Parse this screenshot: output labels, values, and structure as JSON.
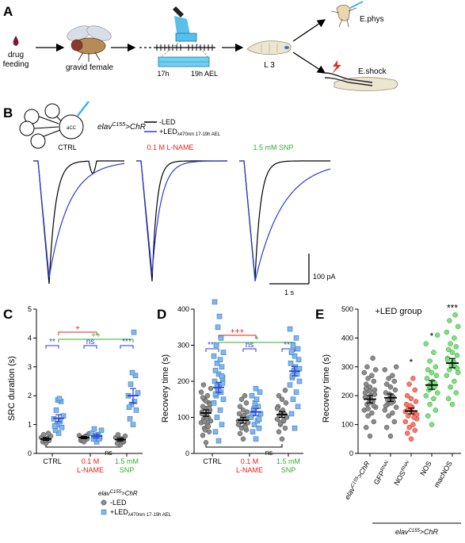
{
  "colors": {
    "blue": "#2a3bd6",
    "red": "#e02020",
    "green": "#2fae2f",
    "grey_point": "#8c8c8c",
    "lightblue_point": "#7fb8ee",
    "lightred_point": "#f47a6c",
    "lightgreen_point": "#7fe07f",
    "black": "#000000"
  },
  "panelA": {
    "letter": "A",
    "drug": "drug",
    "feeding": "feeding",
    "gravid_female": "gravid female",
    "t17": "17h",
    "t19": "19h AEL",
    "l3": "L 3",
    "ephys": "E.phys",
    "eshock": "E.shock"
  },
  "panelB": {
    "letter": "B",
    "neuron": "aCC",
    "genotype_base": "elav",
    "genotype_sup": "C155",
    "genotype_suffix": ">ChR",
    "legend_minus": "-LED",
    "legend_plus": "+LED",
    "legend_plus_sub": "λ470nm 17-19h AEL",
    "cond_ctrl": "CTRL",
    "cond_lname": "0.1 M L-NAME",
    "cond_snp": "1.5 mM SNP",
    "scale_y": "100 pA",
    "scale_x": "1 s"
  },
  "panelC": {
    "letter": "C",
    "ylabel": "SRC duration (s)",
    "yticks": [
      "0",
      "1",
      "2",
      "3",
      "4",
      "5"
    ],
    "x_ctrl": "CTRL",
    "x_lname_1": "0.1 M",
    "x_lname_2": "L-NAME",
    "x_snp_1": "1.5 mM",
    "x_snp_2": "SNP",
    "sig_blue_1": "**",
    "sig_blue_2": "ns",
    "sig_blue_3": "***",
    "sig_red": "+",
    "sig_green": "++",
    "sig_black": "ns",
    "legend_geno_base": "elav",
    "legend_geno_sup": "C155",
    "legend_geno_suffix": ">ChR",
    "legend_minus": "-LED",
    "legend_plus": "+LED",
    "legend_plus_sub": "λ470nm 17-19h AEL"
  },
  "panelD": {
    "letter": "D",
    "ylabel": "Recovery time (s)",
    "yticks": [
      "0",
      "100",
      "200",
      "300",
      "400"
    ],
    "x_ctrl": "CTRL",
    "x_lname_1": "0.1 M",
    "x_lname_2": "L-NAME",
    "x_snp_1": "1.5 mM",
    "x_snp_2": "SNP",
    "sig_blue_1": "***",
    "sig_blue_2": "ns",
    "sig_blue_3": "***",
    "sig_red": "+++",
    "sig_green": "+",
    "sig_black": "ns"
  },
  "panelE": {
    "letter": "E",
    "title": "+LED group",
    "ylabel": "Recovery time (s)",
    "yticks": [
      "0",
      "100",
      "200",
      "300",
      "400",
      "500"
    ],
    "x1_base": "elav",
    "x1_sup": "C155",
    "x1_suffix": ">ChR",
    "x2_base": "GFP",
    "x2_sup": "RNAi",
    "x3_base": "NOS",
    "x3_sup": "RNAi",
    "x4": "NOS",
    "x5": "macNOS",
    "bracket_base": "elav",
    "bracket_sup": "C155",
    "bracket_suffix": ">ChR",
    "sig_3": "*",
    "sig_4": "*",
    "sig_5": "***"
  },
  "chart_data": [
    {
      "type": "scatter",
      "panel": "C",
      "ylabel": "SRC duration (s)",
      "ylim": [
        0,
        5
      ],
      "categories": [
        "CTRL",
        "0.1 M L-NAME",
        "1.5 mM SNP"
      ],
      "series": [
        {
          "name": "-LED",
          "means": [
            0.5,
            0.55,
            0.48
          ],
          "points": [
            [
              0.35,
              0.4,
              0.45,
              0.5,
              0.52,
              0.55,
              0.6,
              0.65,
              0.7,
              0.45
            ],
            [
              0.4,
              0.45,
              0.5,
              0.55,
              0.6,
              0.62,
              0.68,
              0.5,
              0.58,
              0.48
            ],
            [
              0.3,
              0.35,
              0.4,
              0.45,
              0.5,
              0.55,
              0.6,
              0.65,
              0.42,
              0.52
            ]
          ]
        },
        {
          "name": "+LED",
          "means": [
            1.22,
            0.6,
            2.0
          ],
          "points": [
            [
              0.7,
              0.8,
              0.9,
              1.0,
              1.1,
              1.2,
              1.3,
              1.5,
              1.8,
              1.85,
              1.9,
              0.95
            ],
            [
              0.4,
              0.5,
              0.55,
              0.6,
              0.65,
              0.7,
              0.8,
              0.85,
              0.5,
              0.6
            ],
            [
              1.0,
              1.2,
              1.5,
              1.7,
              1.8,
              2.0,
              2.1,
              2.4,
              2.7,
              2.8,
              4.2,
              1.6
            ]
          ]
        }
      ]
    },
    {
      "type": "scatter",
      "panel": "D",
      "ylabel": "Recovery time (s)",
      "ylim": [
        0,
        400
      ],
      "categories": [
        "CTRL",
        "0.1 M L-NAME",
        "1.5 mM SNP"
      ],
      "series": [
        {
          "name": "-LED",
          "means": [
            112,
            92,
            108
          ],
          "points": [
            [
              30,
              50,
              60,
              70,
              80,
              85,
              90,
              95,
              100,
              105,
              110,
              115,
              120,
              125,
              130,
              140,
              150,
              160,
              170,
              180,
              190,
              75,
              65,
              95,
              110,
              135,
              145,
              155,
              125,
              88
            ],
            [
              40,
              55,
              65,
              70,
              75,
              80,
              85,
              90,
              95,
              100,
              105,
              110,
              115,
              120,
              130,
              140,
              150,
              160,
              90,
              98,
              88,
              72
            ],
            [
              40,
              60,
              70,
              80,
              90,
              95,
              100,
              105,
              110,
              115,
              120,
              130,
              140,
              150,
              160,
              175,
              85,
              92,
              125
            ]
          ]
        },
        {
          "name": "+LED",
          "means": [
            183,
            115,
            228
          ],
          "points": [
            [
              35,
              60,
              80,
              100,
              120,
              140,
              150,
              160,
              170,
              180,
              190,
              200,
              210,
              220,
              230,
              240,
              250,
              260,
              270,
              280,
              300,
              320,
              350,
              380,
              420,
              195,
              175,
              165,
              215,
              185
            ],
            [
              40,
              60,
              70,
              80,
              90,
              100,
              110,
              120,
              130,
              140,
              150,
              160,
              170,
              180,
              110,
              95,
              125
            ],
            [
              70,
              110,
              130,
              150,
              170,
              190,
              200,
              210,
              220,
              230,
              240,
              250,
              260,
              270,
              280,
              290,
              300,
              320,
              345,
              235,
              215
            ]
          ]
        }
      ]
    },
    {
      "type": "scatter",
      "panel": "E",
      "title": "+LED group",
      "ylabel": "Recovery time (s)",
      "ylim": [
        0,
        500
      ],
      "categories": [
        "elavC155>ChR",
        "GFPRNAi",
        "NOSRNAi",
        "NOS",
        "macNOS"
      ],
      "means": [
        188,
        193,
        147,
        237,
        313
      ],
      "points": [
        [
          60,
          90,
          110,
          130,
          140,
          150,
          160,
          170,
          180,
          190,
          200,
          210,
          220,
          230,
          240,
          250,
          260,
          270,
          280,
          290,
          300,
          330,
          175,
          185,
          195,
          205,
          215,
          225,
          165,
          155
        ],
        [
          60,
          90,
          110,
          130,
          140,
          150,
          160,
          170,
          180,
          190,
          200,
          210,
          220,
          230,
          240,
          250,
          260,
          270,
          290,
          300,
          185,
          195,
          205,
          175,
          165
        ],
        [
          50,
          70,
          80,
          90,
          100,
          110,
          120,
          130,
          140,
          150,
          160,
          170,
          180,
          190,
          200,
          220,
          240,
          260,
          145,
          135,
          155,
          125,
          165
        ],
        [
          100,
          130,
          150,
          170,
          190,
          200,
          210,
          220,
          230,
          240,
          250,
          260,
          270,
          280,
          290,
          300,
          320,
          350,
          380,
          410,
          235,
          245,
          225
        ],
        [
          170,
          190,
          210,
          230,
          250,
          270,
          280,
          290,
          300,
          310,
          320,
          330,
          340,
          350,
          360,
          370,
          380,
          400,
          420,
          440,
          460,
          480,
          305,
          315,
          325,
          295
        ]
      ],
      "colors": [
        "#8c8c8c",
        "#8c8c8c",
        "#f47a6c",
        "#7fe07f",
        "#7fe07f"
      ]
    }
  ]
}
